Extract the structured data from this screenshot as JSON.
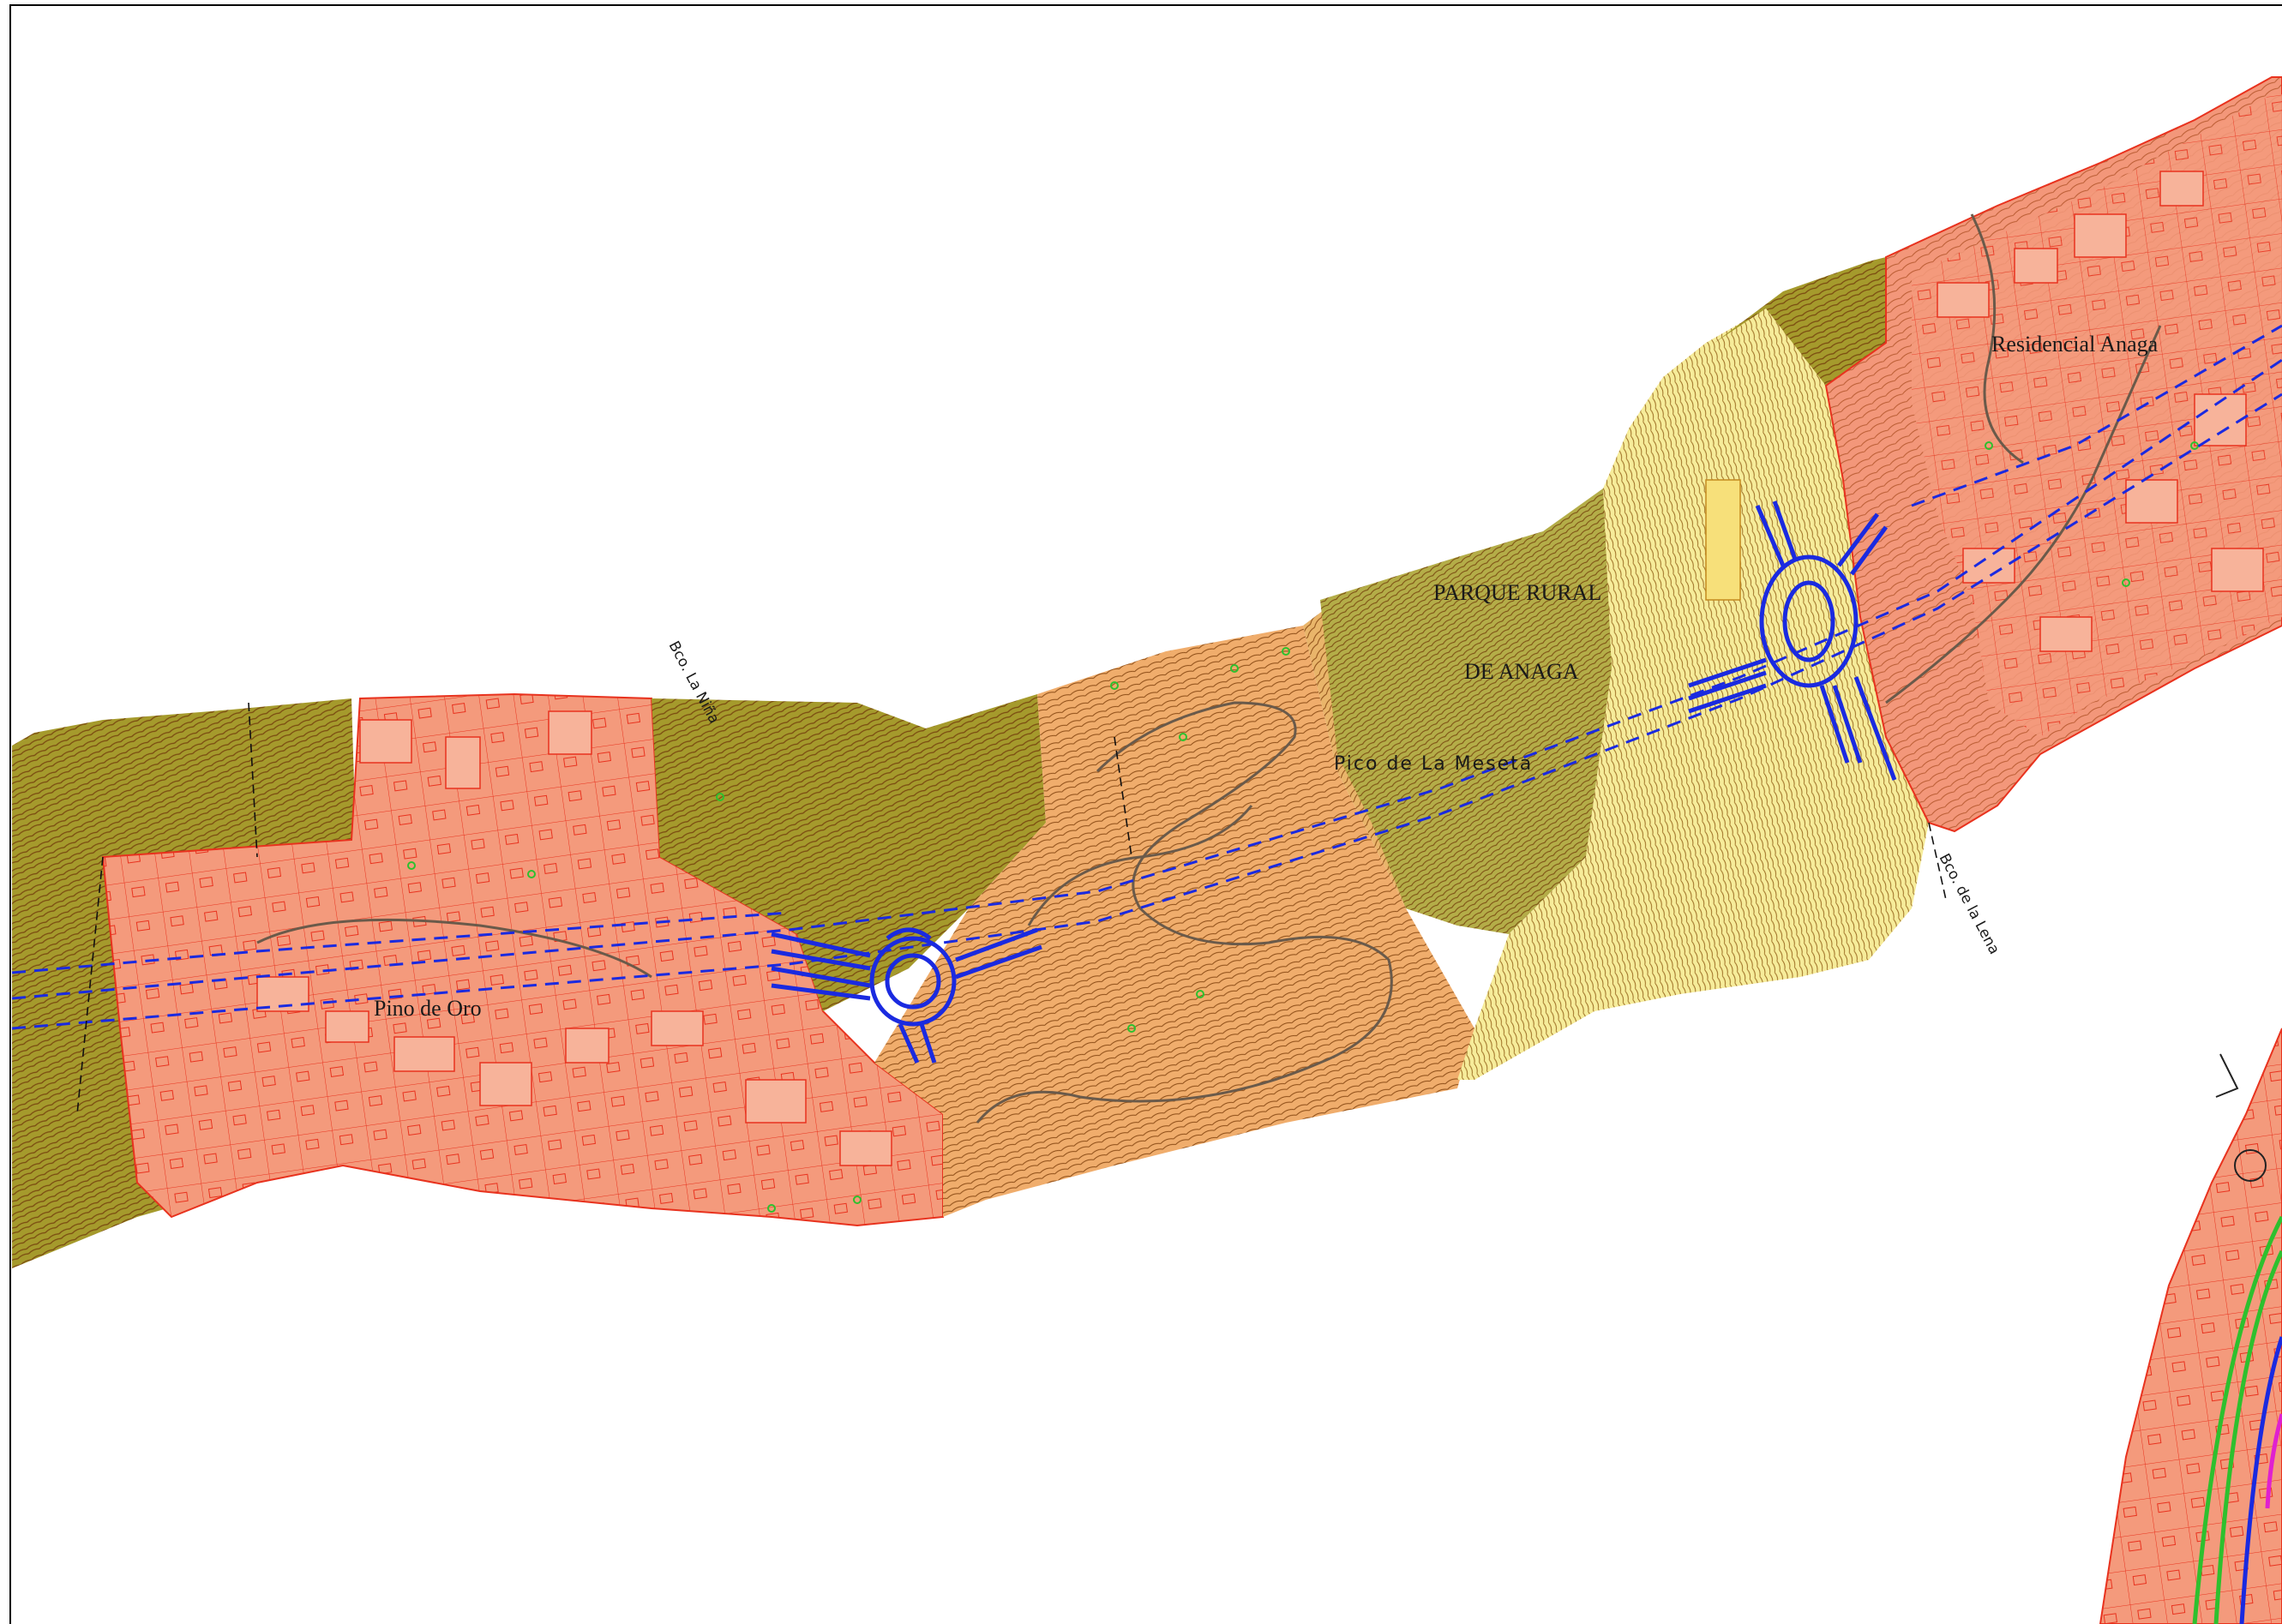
{
  "map": {
    "labels": {
      "parque_rural_line1": "PARQUE RURAL",
      "parque_rural_line2": "DE ANAGA",
      "pico": "Pico de La Meseta",
      "residencial": "Residencial Anaga",
      "pino_de_oro": "Pino de Oro",
      "bco_la_nina": "Bco. La Niña",
      "bco_la_lena": "Bco. de la Lena"
    },
    "colors": {
      "urban": "#f49a7c",
      "urban_edge": "#e8321e",
      "olive": "#a59a2c",
      "olive_dark": "#8a7f1c",
      "light_olive": "#b8b34a",
      "orange": "#f2ac6a",
      "tan": "#e8b46a",
      "yellow": "#f7ee9a",
      "contour": "#8a4a14",
      "road_blue": "#1a2ae0",
      "vegetation_green": "#2ec02e",
      "magenta": "#e020d0"
    }
  }
}
